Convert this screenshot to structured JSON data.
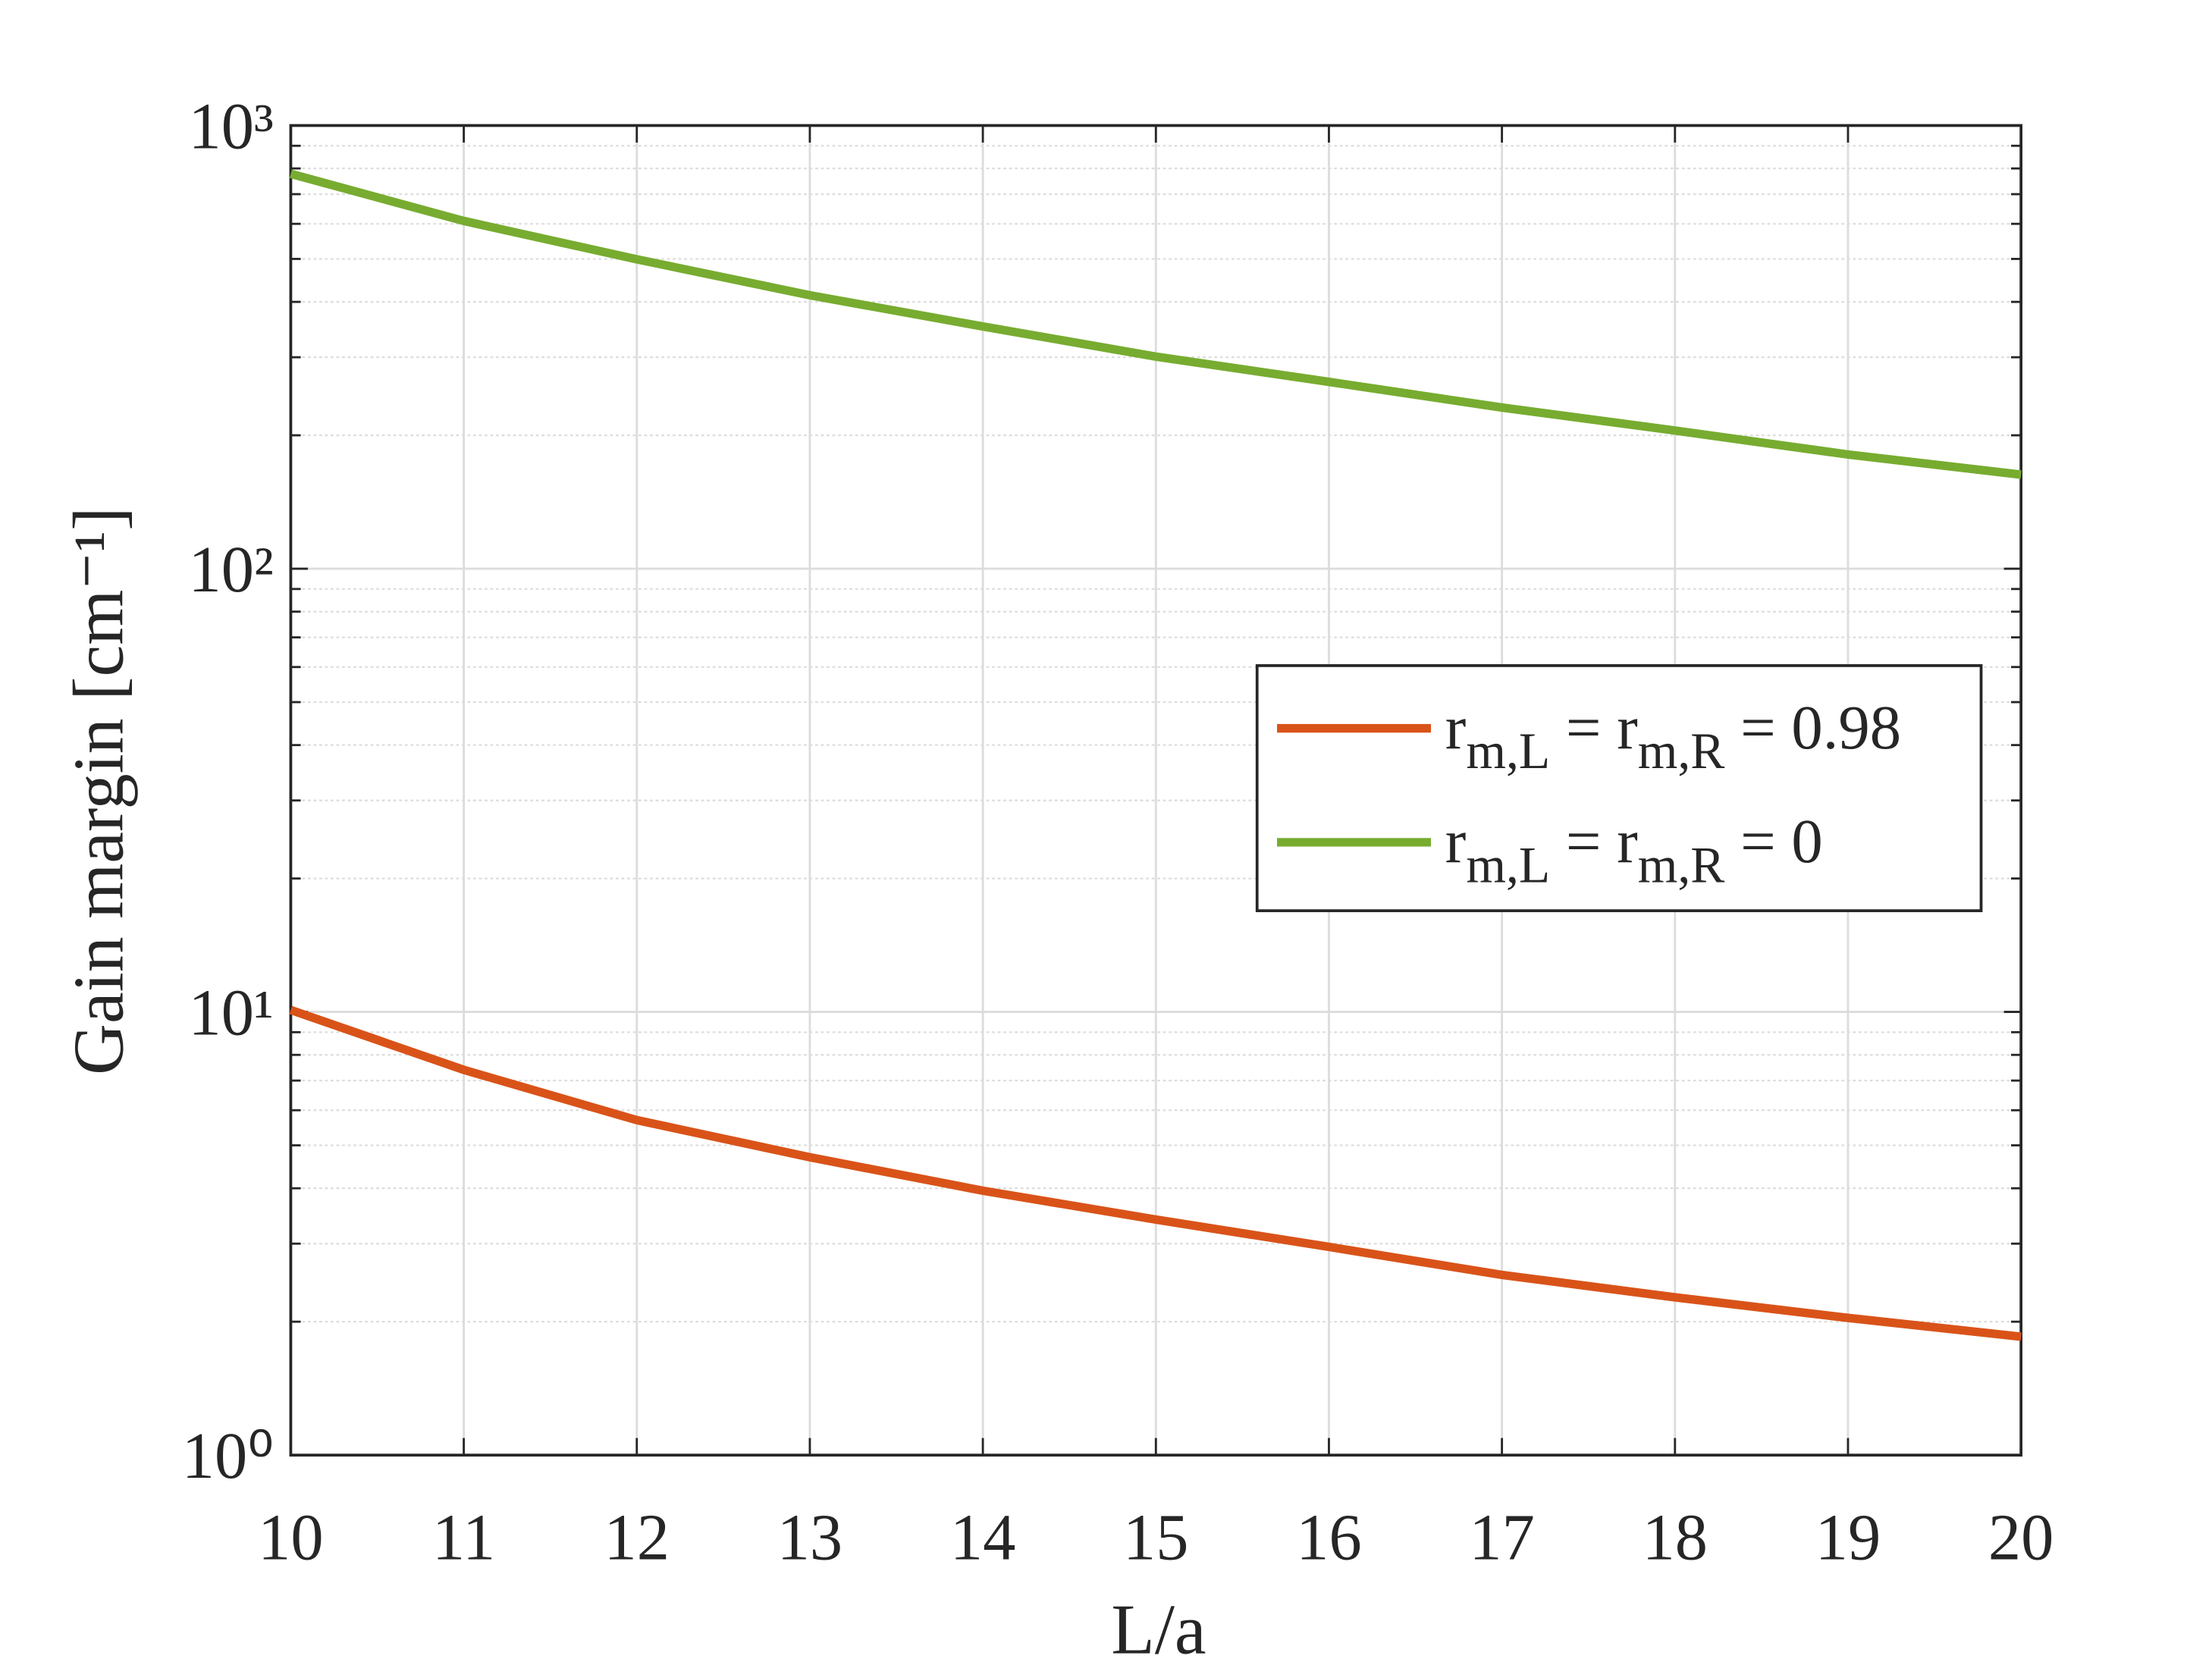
{
  "chart_data": {
    "type": "line",
    "xlabel": "L/a",
    "ylabel": "Gain margin [cm⁻¹]",
    "x": [
      10,
      11,
      12,
      13,
      14,
      15,
      16,
      17,
      18,
      19,
      20
    ],
    "series": [
      {
        "name": "r_{m,L} = r_{m,R} = 0.98",
        "color": "#d95319",
        "values": [
          10.1,
          7.4,
          5.7,
          4.7,
          3.95,
          3.4,
          2.95,
          2.55,
          2.27,
          2.04,
          1.85
        ]
      },
      {
        "name": "r_{m,L} = r_{m,R} = 0",
        "color": "#77ac30",
        "values": [
          778,
          609,
          499,
          414,
          352,
          301,
          264,
          231,
          205,
          181,
          163
        ]
      }
    ],
    "xlim": [
      10,
      20
    ],
    "xticks": [
      10,
      11,
      12,
      13,
      14,
      15,
      16,
      17,
      18,
      19,
      20
    ],
    "ylim": [
      1,
      1000
    ],
    "yscale": "log",
    "yticks": [
      {
        "value": 1,
        "label": "10⁰"
      },
      {
        "value": 10,
        "label": "10¹"
      },
      {
        "value": 100,
        "label": "10²"
      },
      {
        "value": 1000,
        "label": "10³"
      }
    ],
    "grid": true,
    "legend": "upper right"
  }
}
